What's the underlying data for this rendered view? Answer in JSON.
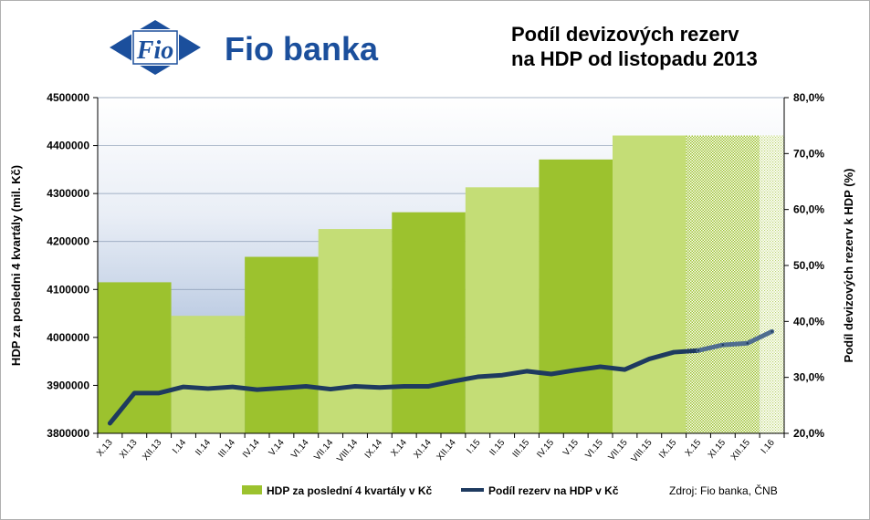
{
  "header": {
    "logo_emblem_text": "Fio",
    "logo_text": "Fio banka",
    "title_line1": "Podíl devizových rezerv",
    "title_line2": "na HDP od listopadu 2013"
  },
  "colors": {
    "bar_dark": "#9cc22e",
    "bar_light": "#c4dd76",
    "bar_forecast": "#9cc22e",
    "line": "#1e3a5f",
    "logo_blue": "#1b4f9c"
  },
  "legend": {
    "bars_label": "HDP za poslední 4 kvartály v Kč",
    "line_label": "Podíl rezerv na HDP v Kč",
    "source": "Zdroj:  Fio banka, ČNB"
  },
  "chart_data": {
    "type": "bar",
    "ylabel": "HDP za posledni 4 kvartály (mil. Kč)",
    "y2label": "Podíl devizových rezerv k HDP (%)",
    "ylim": [
      3800000,
      4500000
    ],
    "y2lim": [
      20,
      80
    ],
    "yticks": [
      "3800000",
      "3900000",
      "4000000",
      "4100000",
      "4200000",
      "4300000",
      "4400000",
      "4500000"
    ],
    "y2ticks": [
      "20,0%",
      "30,0%",
      "40,0%",
      "50,0%",
      "60,0%",
      "70,0%",
      "80,0%"
    ],
    "categories": [
      "X.13",
      "XI.13",
      "XII.13",
      "I.14",
      "II.14",
      "III.14",
      "IV.14",
      "V.14",
      "VI.14",
      "VII.14",
      "VIII.14",
      "IX.14",
      "X.14",
      "XI.14",
      "XII.14",
      "I.15",
      "II.15",
      "III.15",
      "IV.15",
      "V.15",
      "VI.15",
      "VII.15",
      "VIII.15",
      "IX.15",
      "X.15",
      "XI.15",
      "XII.15",
      "I.16"
    ],
    "bar_groups": [
      {
        "start": 0,
        "end": 2,
        "value": 4115000,
        "shade": "dark"
      },
      {
        "start": 3,
        "end": 5,
        "value": 4045000,
        "shade": "light"
      },
      {
        "start": 6,
        "end": 8,
        "value": 4168000,
        "shade": "dark"
      },
      {
        "start": 9,
        "end": 11,
        "value": 4226000,
        "shade": "light"
      },
      {
        "start": 12,
        "end": 14,
        "value": 4261000,
        "shade": "dark"
      },
      {
        "start": 15,
        "end": 17,
        "value": 4313000,
        "shade": "light"
      },
      {
        "start": 18,
        "end": 20,
        "value": 4371000,
        "shade": "dark"
      },
      {
        "start": 21,
        "end": 23,
        "value": 4421000,
        "shade": "light"
      },
      {
        "start": 24,
        "end": 26,
        "value": 4421000,
        "shade": "forecast"
      },
      {
        "start": 27,
        "end": 27,
        "value": 4421000,
        "shade": "forecast-light"
      }
    ],
    "series": [
      {
        "name": "Podíl rezerv na HDP v Kč",
        "axis": "right",
        "values": [
          21.8,
          27.2,
          27.2,
          28.3,
          28.0,
          28.3,
          27.8,
          28.1,
          28.4,
          27.9,
          28.4,
          28.2,
          28.4,
          28.4,
          29.3,
          30.1,
          30.4,
          31.1,
          30.6,
          31.3,
          31.9,
          31.4,
          33.3,
          34.5,
          34.8,
          35.8,
          36.1,
          38.2
        ]
      }
    ]
  }
}
